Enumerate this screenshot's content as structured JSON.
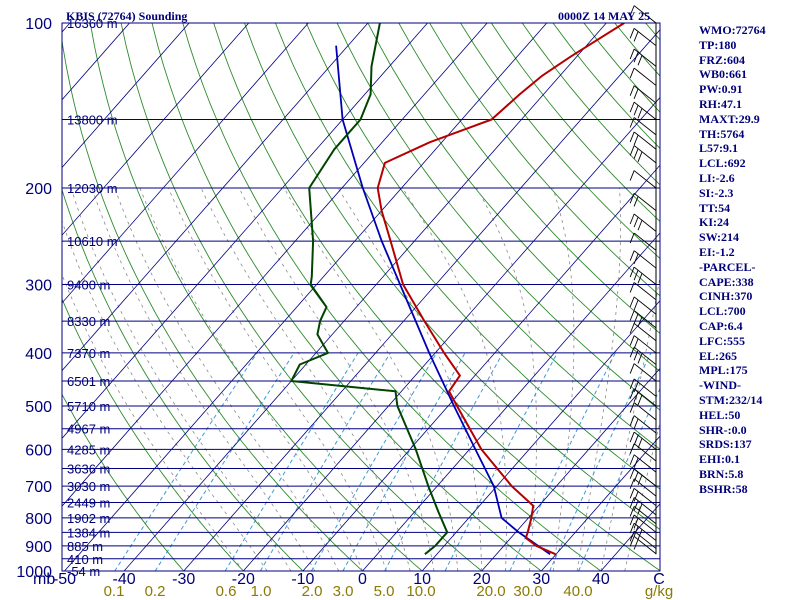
{
  "header": {
    "station": "KBIS (72764) Sounding",
    "time": "0000Z 14 MAY 25"
  },
  "sidebar": {
    "items": [
      "WMO:72764",
      "TP:180",
      "FRZ:604",
      "WB0:661",
      "PW:0.91",
      "RH:47.1",
      "MAXT:29.9",
      "TH:5764",
      "L57:9.1",
      "LCL:692",
      "LI:-2.6",
      "SI:-2.3",
      "TT:54",
      "KI:24",
      "SW:214",
      "EI:-1.2",
      "-PARCEL-",
      "CAPE:338",
      "CINH:370",
      "LCL:700",
      "CAP:6.4",
      "LFC:555",
      "EL:265",
      "MPL:175",
      "-WIND-",
      "STM:232/14",
      "HEL:50",
      "SHR-:0.0",
      "SRDS:137",
      "EHI:0.1",
      "BRN:5.8",
      "BSHR:58"
    ]
  },
  "colors": {
    "axes_text": "#00007a",
    "isobar": "#000080",
    "isotherm": "#000080",
    "dry_adiabat": "#2e8b2e",
    "moist_adiabat": "#8a8a8a",
    "mixing_ratio": "#3b9bd6",
    "temperature": "#b40000",
    "dewpoint": "#004400",
    "parcel": "#0000b4",
    "mixing_ratio_labels": "#8b7a00",
    "wind_barbs": "#000000"
  },
  "chart_data": {
    "type": "skew-t",
    "xlabel": "C",
    "mixing_ratio_unit": "g/kg",
    "pressure_label": "mb",
    "pressure_levels": [
      100,
      200,
      300,
      400,
      500,
      600,
      700,
      800,
      900,
      1000
    ],
    "temperature_ticks": [
      -50,
      -40,
      -30,
      -20,
      -10,
      0,
      10,
      20,
      30,
      40
    ],
    "mixing_ratio_ticks": [
      "0.1",
      "0.2",
      "0.6",
      "1.0",
      "2.0",
      "3.0",
      "5.0",
      "10.0",
      "20.0",
      "30.0",
      "40.0"
    ],
    "height_labels": [
      {
        "p": 100,
        "h": "16360 m"
      },
      {
        "p": 150,
        "h": "13800 m"
      },
      {
        "p": 200,
        "h": "12030 m"
      },
      {
        "p": 250,
        "h": "10610 m"
      },
      {
        "p": 300,
        "h": "9400 m"
      },
      {
        "p": 350,
        "h": "8330 m"
      },
      {
        "p": 400,
        "h": "7370 m"
      },
      {
        "p": 450,
        "h": "6501 m"
      },
      {
        "p": 500,
        "h": "5710 m"
      },
      {
        "p": 550,
        "h": "4967 m"
      },
      {
        "p": 600,
        "h": "4285 m"
      },
      {
        "p": 650,
        "h": "3636 m"
      },
      {
        "p": 700,
        "h": "3030 m"
      },
      {
        "p": 750,
        "h": "2449 m"
      },
      {
        "p": 800,
        "h": "1902 m"
      },
      {
        "p": 850,
        "h": "1384 m"
      },
      {
        "p": 900,
        "h": "885 m"
      },
      {
        "p": 950,
        "h": "410 m"
      },
      {
        "p": 1000,
        "h": "-54 m"
      }
    ],
    "temperature": [
      {
        "p": 932,
        "t": 29.9
      },
      {
        "p": 900,
        "t": 25.5
      },
      {
        "p": 870,
        "t": 22.5
      },
      {
        "p": 850,
        "t": 22.0
      },
      {
        "p": 800,
        "t": 20.5
      },
      {
        "p": 760,
        "t": 19.0
      },
      {
        "p": 700,
        "t": 12.5
      },
      {
        "p": 600,
        "t": 2.0
      },
      {
        "p": 500,
        "t": -8.5
      },
      {
        "p": 470,
        "t": -12.0
      },
      {
        "p": 440,
        "t": -12.5
      },
      {
        "p": 400,
        "t": -18.5
      },
      {
        "p": 350,
        "t": -26.5
      },
      {
        "p": 300,
        "t": -35.5
      },
      {
        "p": 250,
        "t": -44.0
      },
      {
        "p": 220,
        "t": -50.0
      },
      {
        "p": 200,
        "t": -54.0
      },
      {
        "p": 180,
        "t": -56.5
      },
      {
        "p": 165,
        "t": -52.0
      },
      {
        "p": 150,
        "t": -45.0
      },
      {
        "p": 135,
        "t": -44.0
      },
      {
        "p": 125,
        "t": -43.0
      },
      {
        "p": 115,
        "t": -41.0
      },
      {
        "p": 100,
        "t": -37.0
      }
    ],
    "dewpoint": [
      {
        "p": 932,
        "t": 8.0
      },
      {
        "p": 900,
        "t": 8.5
      },
      {
        "p": 850,
        "t": 8.5
      },
      {
        "p": 780,
        "t": 4.0
      },
      {
        "p": 700,
        "t": -1.5
      },
      {
        "p": 600,
        "t": -9.0
      },
      {
        "p": 500,
        "t": -18.5
      },
      {
        "p": 470,
        "t": -21.0
      },
      {
        "p": 450,
        "t": -40.0
      },
      {
        "p": 420,
        "t": -41.0
      },
      {
        "p": 400,
        "t": -38.0
      },
      {
        "p": 370,
        "t": -42.5
      },
      {
        "p": 350,
        "t": -44.0
      },
      {
        "p": 330,
        "t": -45.0
      },
      {
        "p": 300,
        "t": -51.0
      },
      {
        "p": 290,
        "t": -52.0
      },
      {
        "p": 250,
        "t": -57.0
      },
      {
        "p": 200,
        "t": -65.5
      },
      {
        "p": 170,
        "t": -67.0
      },
      {
        "p": 150,
        "t": -67.0
      },
      {
        "p": 135,
        "t": -69.0
      },
      {
        "p": 120,
        "t": -73.0
      },
      {
        "p": 100,
        "t": -78.0
      }
    ],
    "parcel": [
      {
        "p": 932,
        "t": 29.0
      },
      {
        "p": 850,
        "t": 20.5
      },
      {
        "p": 800,
        "t": 15.5
      },
      {
        "p": 700,
        "t": 9.5
      },
      {
        "p": 600,
        "t": 1.0
      },
      {
        "p": 500,
        "t": -9.0
      },
      {
        "p": 400,
        "t": -21.0
      },
      {
        "p": 300,
        "t": -36.0
      },
      {
        "p": 250,
        "t": -45.5
      },
      {
        "p": 200,
        "t": -56.5
      },
      {
        "p": 150,
        "t": -70.0
      },
      {
        "p": 110,
        "t": -82.0
      }
    ],
    "wind_barbs_pressures": [
      100,
      110,
      120,
      130,
      140,
      150,
      160,
      170,
      180,
      200,
      220,
      240,
      260,
      280,
      300,
      320,
      340,
      360,
      380,
      400,
      420,
      450,
      480,
      500,
      530,
      560,
      600,
      630,
      660,
      700,
      730,
      760,
      790,
      820,
      850,
      880,
      910,
      930
    ]
  }
}
